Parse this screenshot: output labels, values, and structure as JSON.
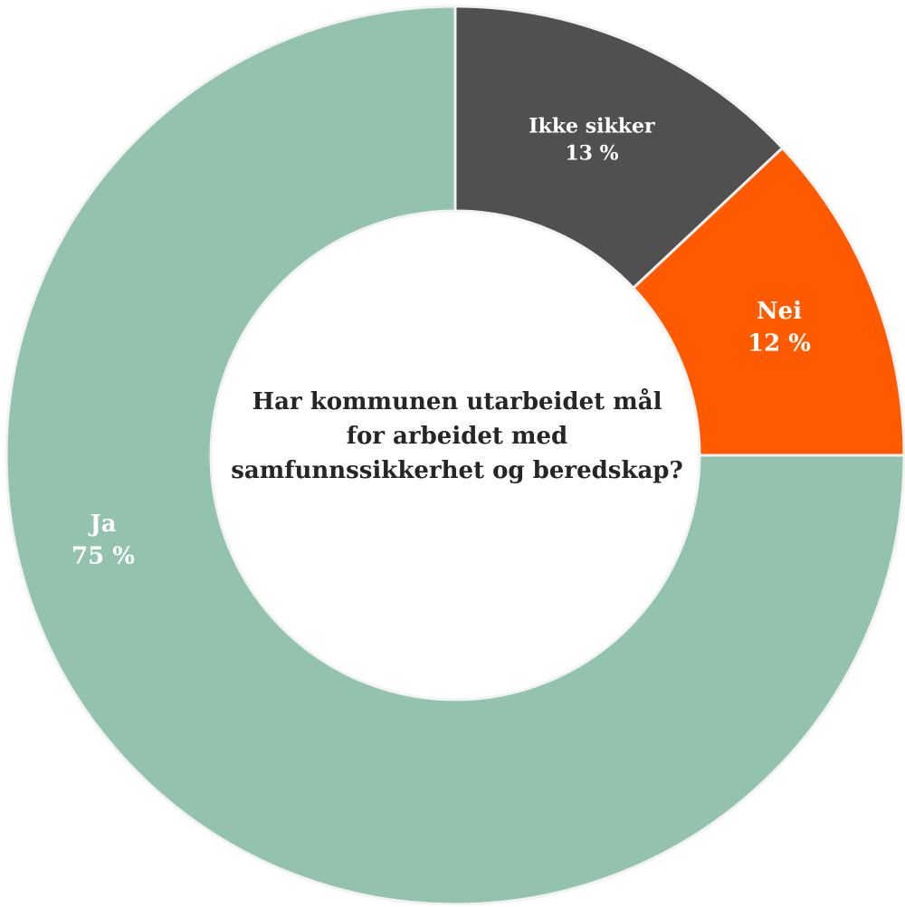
{
  "chart_data": {
    "type": "pie",
    "variant": "donut",
    "title": "Har kommunen utarbeidet mål for arbeidet med samfunnssikkerhet og beredskap?",
    "slices": [
      {
        "label": "Ikke sikker",
        "value": 13,
        "value_label": "13 %",
        "color": "#505050"
      },
      {
        "label": "Nei",
        "value": 12,
        "value_label": "12 %",
        "color": "#FF5A00"
      },
      {
        "label": "Ja",
        "value": 75,
        "value_label": "75 %",
        "color": "#93C2AE"
      }
    ],
    "start": "top, clockwise",
    "legend": "none (labels on slices)"
  }
}
